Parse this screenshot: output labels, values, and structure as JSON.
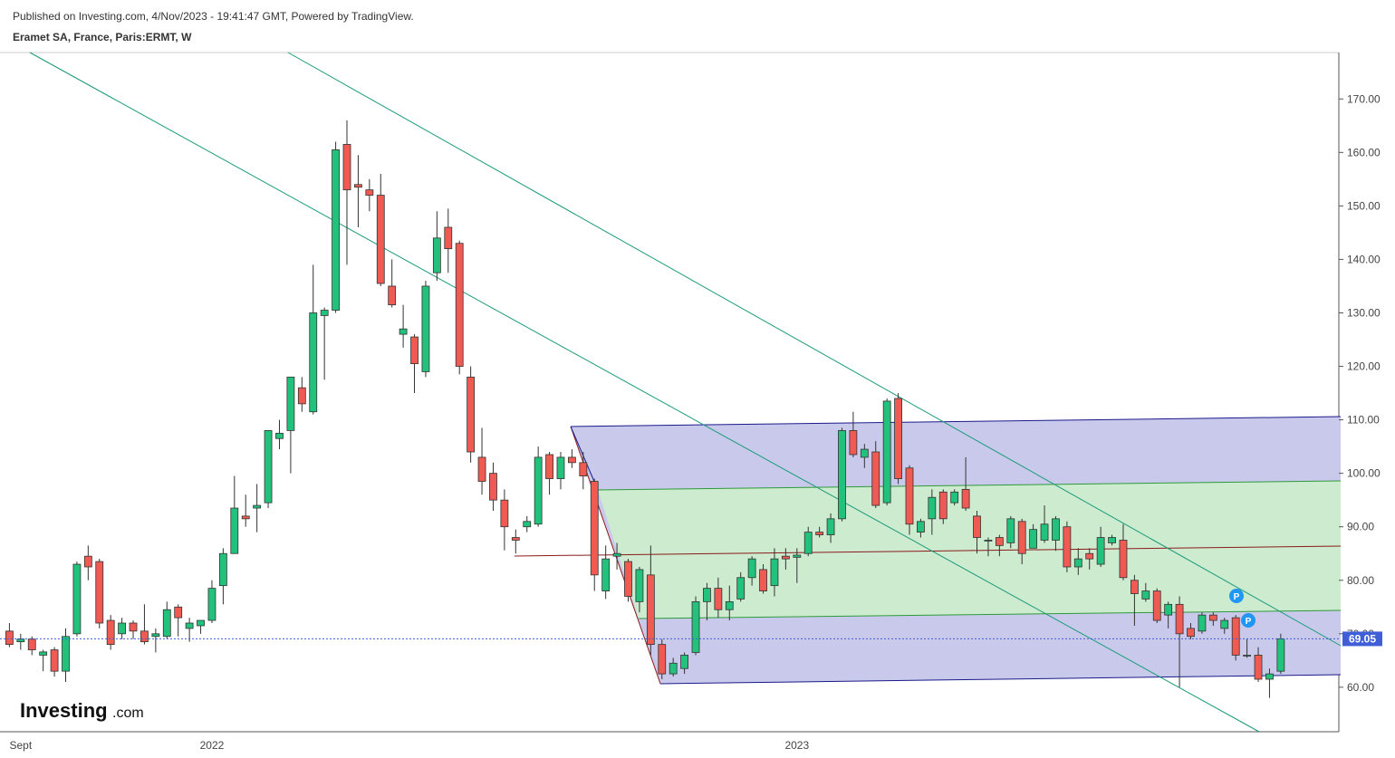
{
  "header": {
    "published": "Published on Investing.com, 4/Nov/2023 - 19:41:47 GMT, Powered by TradingView.",
    "symbol": "Eramet SA, France, Paris:ERMT, W"
  },
  "logo": {
    "name": "Investing",
    "suffix": ".com"
  },
  "chart_data": {
    "type": "candlestick",
    "categories": [
      null,
      "Sept",
      null,
      null,
      null,
      null,
      null,
      null,
      null,
      null,
      null,
      null,
      null,
      null,
      null,
      null,
      null,
      null,
      "2022",
      null,
      null,
      null,
      null,
      null,
      null,
      null,
      null,
      null,
      null,
      null,
      null,
      null,
      null,
      null,
      null,
      null,
      null,
      null,
      null,
      null,
      null,
      null,
      null,
      null,
      null,
      null,
      null,
      null,
      null,
      null,
      null,
      null,
      null,
      null,
      null,
      null,
      null,
      null,
      null,
      null,
      null,
      null,
      null,
      null,
      null,
      null,
      null,
      null,
      null,
      null,
      "2023",
      null,
      null,
      null,
      null,
      null,
      null,
      null,
      null,
      null,
      null,
      null,
      null,
      null,
      null,
      null,
      null,
      null,
      null,
      null,
      null,
      null,
      null,
      null,
      null,
      null,
      null,
      null,
      null,
      null,
      null,
      null,
      null,
      null,
      null,
      null,
      null,
      null,
      null,
      null,
      null,
      null,
      null,
      null
    ],
    "open": [
      70.5,
      68.5,
      69,
      66,
      67,
      63,
      70,
      84.5,
      83.5,
      72.5,
      70,
      72,
      70.5,
      69.5,
      69.5,
      75,
      71,
      71.5,
      72.5,
      79,
      85,
      92,
      93.5,
      94.5,
      106.5,
      108,
      116,
      111.5,
      129.5,
      130.5,
      161.5,
      154,
      153,
      152,
      135,
      126,
      125.5,
      119,
      137.5,
      146,
      143,
      118,
      103,
      100,
      95,
      88,
      90,
      90.5,
      103.5,
      99,
      103,
      102,
      98.5,
      78,
      84.5,
      83.5,
      76,
      81,
      68,
      62.5,
      63.5,
      66.5,
      76,
      78.5,
      74.5,
      76.5,
      80.5,
      82,
      79,
      84.5,
      84.3,
      85,
      89,
      88.5,
      91.5,
      108,
      103,
      104,
      94.5,
      114,
      101,
      89,
      91.5,
      96.5,
      94.5,
      97,
      92,
      87.5,
      88,
      87,
      91,
      86,
      87.5,
      87.5,
      90,
      82.5,
      85,
      83,
      87,
      87.5,
      80,
      76.5,
      78,
      73.5,
      75.5,
      71,
      70.5,
      73.5,
      71,
      73,
      66,
      66,
      61.5,
      63
    ],
    "high": [
      72,
      70,
      69.5,
      67,
      67.5,
      71,
      83.5,
      86.5,
      84,
      73.5,
      73,
      72.5,
      75.5,
      71,
      76,
      75.5,
      73,
      72.5,
      80,
      86,
      99.5,
      96,
      98,
      108,
      110,
      118,
      118,
      139,
      131,
      162,
      166,
      159.5,
      155,
      156,
      140,
      131.5,
      126,
      136,
      149,
      149.5,
      143.5,
      120,
      108.5,
      102,
      97,
      89.5,
      92,
      105,
      104,
      104,
      104.5,
      104,
      99,
      86.5,
      87,
      84,
      82.5,
      86.5,
      69,
      65.5,
      66.5,
      77,
      79.5,
      80.5,
      79,
      81.5,
      84.5,
      83,
      86,
      86,
      86,
      90,
      90,
      92.5,
      108.5,
      111.5,
      105.5,
      106,
      114,
      115,
      101.5,
      91.5,
      97,
      97,
      97,
      103,
      93,
      88,
      88.5,
      92,
      91.5,
      90.5,
      94,
      92,
      91,
      86,
      86,
      90,
      88.5,
      90.5,
      81,
      79.5,
      78.5,
      76,
      77,
      72,
      74,
      74,
      73,
      73.5,
      69,
      67.5,
      63.5,
      70
    ],
    "low": [
      67.5,
      67,
      66,
      63,
      62,
      61,
      69.5,
      80,
      71,
      67,
      69,
      69,
      68,
      66.5,
      69,
      69.5,
      68.5,
      70,
      72,
      75.5,
      85,
      90,
      89,
      93.5,
      104.5,
      100,
      111.5,
      111,
      117.5,
      130,
      139,
      146,
      149,
      135,
      131,
      123.5,
      115,
      118,
      136,
      137.5,
      118.5,
      102,
      96,
      93,
      85.6,
      85,
      89,
      90,
      96,
      97,
      101,
      97,
      78,
      76.5,
      82,
      76,
      74,
      66,
      61.5,
      62,
      62.5,
      66,
      72.5,
      73,
      72.5,
      76,
      79,
      77.5,
      77,
      82,
      79.5,
      84.5,
      88,
      87,
      91,
      103,
      101,
      93.5,
      94,
      98,
      88.5,
      88,
      88.5,
      90.5,
      94,
      93,
      85,
      84.5,
      84.5,
      86,
      83,
      86,
      87,
      85.5,
      81.5,
      81,
      82,
      82.5,
      86.5,
      80,
      71.5,
      76,
      72,
      71,
      60,
      69,
      70,
      71.5,
      70,
      65,
      65.5,
      61,
      58,
      62.5
    ],
    "close": [
      68,
      69,
      67,
      66.6,
      63,
      69.5,
      83,
      82.5,
      72,
      68,
      72,
      70.5,
      68.5,
      70,
      74.5,
      73,
      72,
      72.5,
      78.5,
      85,
      93.5,
      91.5,
      94,
      108,
      107.5,
      118,
      113,
      130,
      130.5,
      160.5,
      153,
      153.5,
      152,
      135.5,
      131.5,
      127,
      120.5,
      135,
      144,
      142,
      120,
      104,
      98.5,
      95,
      90,
      87.5,
      91,
      103,
      99,
      103,
      102,
      99.5,
      81,
      84,
      85,
      77,
      82,
      68,
      62.5,
      64.5,
      66,
      76,
      78.5,
      74.5,
      76,
      80.5,
      84,
      78,
      84,
      84,
      84.7,
      89,
      88.5,
      91.5,
      108,
      103.5,
      104.5,
      94,
      113.5,
      99,
      90.5,
      91,
      95.5,
      91.5,
      96.5,
      93.5,
      88,
      87.5,
      86.5,
      91.5,
      85,
      89.5,
      90.5,
      91.5,
      82.5,
      84,
      84,
      88,
      88,
      80.5,
      77.5,
      78,
      72.5,
      75.5,
      70,
      69.5,
      73.5,
      72.5,
      72.5,
      66,
      66,
      61.5,
      62.5,
      69.05
    ],
    "up_color": "#22c27c",
    "down_color": "#ef5b53",
    "ylim": [
      51.68,
      178.68
    ],
    "yticks": [
      {
        "value": 60,
        "label": "60.00"
      },
      {
        "value": 70,
        "label": "70.00"
      },
      {
        "value": 80,
        "label": "80.00"
      },
      {
        "value": 90,
        "label": "90.00"
      },
      {
        "value": 100,
        "label": "100.00"
      },
      {
        "value": 110,
        "label": "110.00"
      },
      {
        "value": 120,
        "label": "120.00"
      },
      {
        "value": 130,
        "label": "130.00"
      },
      {
        "value": 140,
        "label": "140.00"
      },
      {
        "value": 150,
        "label": "150.00"
      },
      {
        "value": 160,
        "label": "160.00"
      },
      {
        "value": 170,
        "label": "170.00"
      }
    ],
    "last_price": 69.05,
    "last_price_color": "#3f5fd8",
    "grid": false
  }
}
